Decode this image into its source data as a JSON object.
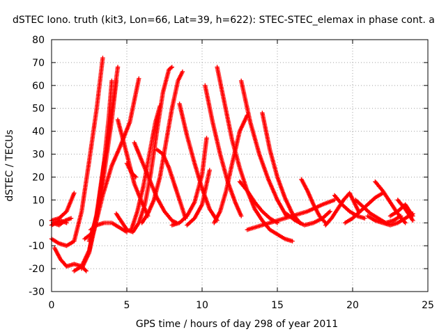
{
  "chart_data": {
    "type": "scatter",
    "title": "dSTEC Iono. truth (kit3, Lon=66, Lat=39, h=622): STEC-STEC_elemax in phase cont. a",
    "xlabel": "GPS time / hours of day 298 of year 2011",
    "ylabel": "dSTEC  / TECUs",
    "xlim": [
      0,
      25
    ],
    "ylim": [
      -30,
      80
    ],
    "xticks": [
      0,
      5,
      10,
      15,
      20,
      25
    ],
    "yticks": [
      -30,
      -20,
      -10,
      0,
      10,
      20,
      30,
      40,
      50,
      60,
      70,
      80
    ],
    "grid": true,
    "marker": "+",
    "color": "#ff0000",
    "series": [
      {
        "x": [
          0,
          0.5,
          1.0,
          1.5
        ],
        "y": [
          1,
          2,
          5,
          13
        ]
      },
      {
        "x": [
          0,
          0.3,
          0.6,
          1.0
        ],
        "y": [
          -1,
          0,
          1,
          0
        ]
      },
      {
        "x": [
          0.1,
          0.5,
          0.9,
          1.3
        ],
        "y": [
          0,
          -1,
          1,
          2
        ]
      },
      {
        "x": [
          0,
          0.5,
          1.0,
          1.5,
          2.0,
          2.5,
          3.0,
          3.4
        ],
        "y": [
          -7,
          -9,
          -10,
          -8,
          5,
          27,
          50,
          72
        ]
      },
      {
        "x": [
          0.2,
          0.6,
          1.0,
          1.5,
          2.0,
          2.3
        ],
        "y": [
          -11,
          -16,
          -19,
          -18,
          -19,
          -21
        ]
      },
      {
        "x": [
          1.5,
          2.0,
          2.5,
          3.0,
          3.5,
          3.8,
          4.0
        ],
        "y": [
          -21,
          -19,
          -12,
          4,
          27,
          46,
          62
        ]
      },
      {
        "x": [
          2.0,
          2.5,
          3.0,
          3.5,
          4.0,
          4.4
        ],
        "y": [
          -20,
          -13,
          2,
          26,
          48,
          68
        ]
      },
      {
        "x": [
          2.5,
          3.0,
          3.5,
          4.0,
          4.3
        ],
        "y": [
          -8,
          3,
          22,
          45,
          62
        ]
      },
      {
        "x": [
          2.2,
          2.8,
          3.4,
          4.0,
          4.6,
          5.2,
          5.8
        ],
        "y": [
          -7,
          -4,
          12,
          25,
          34,
          44,
          63
        ]
      },
      {
        "x": [
          2.6,
          3.0,
          3.5,
          4.0,
          4.5,
          5.0
        ],
        "y": [
          -3,
          -1,
          0,
          0,
          -2,
          -4
        ]
      },
      {
        "x": [
          4.3,
          4.7,
          5.0,
          5.4,
          5.8,
          6.2,
          6.6,
          7.0,
          7.4,
          7.8,
          8.0
        ],
        "y": [
          4,
          0,
          -3,
          -4,
          0,
          8,
          22,
          40,
          57,
          67,
          68
        ]
      },
      {
        "x": [
          4.4,
          5.0,
          5.5,
          6.0,
          6.4
        ],
        "y": [
          45,
          30,
          17,
          9,
          3
        ]
      },
      {
        "x": [
          5.3,
          5.7,
          6.1,
          6.5,
          6.9,
          7.2
        ],
        "y": [
          -3,
          5,
          16,
          30,
          44,
          51
        ]
      },
      {
        "x": [
          5.0,
          5.3,
          5.6
        ],
        "y": [
          26,
          22,
          20
        ]
      },
      {
        "x": [
          5.5,
          6.0,
          6.5,
          7.0,
          7.5,
          8.0,
          8.3
        ],
        "y": [
          35,
          27,
          19,
          11,
          5,
          1,
          0
        ]
      },
      {
        "x": [
          7.0,
          7.4,
          7.8,
          8.2,
          8.6,
          8.9
        ],
        "y": [
          32,
          30,
          24,
          16,
          8,
          2
        ]
      },
      {
        "x": [
          6.0,
          6.4,
          6.8,
          7.2,
          7.6,
          8.0,
          8.4,
          8.7
        ],
        "y": [
          0,
          4,
          10,
          20,
          35,
          50,
          62,
          66
        ]
      },
      {
        "x": [
          8.0,
          8.5,
          9.0,
          9.5,
          10.0,
          10.3
        ],
        "y": [
          -1,
          0,
          3,
          9,
          21,
          37
        ]
      },
      {
        "x": [
          8.5,
          9.0,
          9.5,
          10.0,
          10.5,
          11.0
        ],
        "y": [
          52,
          38,
          26,
          15,
          6,
          1
        ]
      },
      {
        "x": [
          9.0,
          9.5,
          10.0,
          10.5
        ],
        "y": [
          -1,
          2,
          8,
          23
        ]
      },
      {
        "x": [
          10.2,
          10.7,
          11.2,
          11.7,
          12.2,
          12.6
        ],
        "y": [
          60,
          44,
          30,
          18,
          9,
          3
        ]
      },
      {
        "x": [
          10.8,
          11.2,
          11.6,
          12.0,
          12.5,
          13.0
        ],
        "y": [
          0,
          5,
          14,
          26,
          40,
          47
        ]
      },
      {
        "x": [
          11.0,
          11.5,
          12.0,
          12.5,
          13.0,
          13.5,
          14.0,
          14.5,
          15.0,
          15.5,
          16.0
        ],
        "y": [
          68,
          52,
          36,
          24,
          14,
          6,
          1,
          -3,
          -5,
          -7,
          -8
        ]
      },
      {
        "x": [
          12.6,
          13.2,
          13.8,
          14.4,
          15.0,
          15.6
        ],
        "y": [
          62,
          44,
          30,
          19,
          10,
          3
        ]
      },
      {
        "x": [
          12.5,
          13.0,
          13.5,
          14.0,
          14.5,
          15.0
        ],
        "y": [
          18,
          14,
          9,
          5,
          2,
          0
        ]
      },
      {
        "x": [
          13.0,
          14.0,
          15.0,
          16.0,
          17.0,
          18.0,
          18.8
        ],
        "y": [
          -3,
          -1,
          1,
          3,
          5,
          8,
          10
        ]
      },
      {
        "x": [
          14.0,
          14.5,
          15.0,
          15.5,
          16.0,
          16.5
        ],
        "y": [
          48,
          32,
          20,
          11,
          4,
          0
        ]
      },
      {
        "x": [
          16.6,
          17.0,
          17.4,
          17.8,
          18.2
        ],
        "y": [
          19,
          14,
          8,
          3,
          0
        ]
      },
      {
        "x": [
          15.6,
          16.2,
          16.8,
          17.4,
          18.0,
          18.5
        ],
        "y": [
          4,
          1,
          -1,
          0,
          2,
          5
        ]
      },
      {
        "x": [
          18.2,
          18.6,
          19.0,
          19.4,
          19.8,
          20.4
        ],
        "y": [
          -1,
          2,
          6,
          10,
          13,
          5
        ]
      },
      {
        "x": [
          18.8,
          19.3,
          19.8,
          20.3,
          20.8
        ],
        "y": [
          12,
          8,
          5,
          3,
          2
        ]
      },
      {
        "x": [
          19.5,
          20.0,
          20.5,
          21.0,
          21.5,
          22.0
        ],
        "y": [
          0,
          2,
          5,
          8,
          11,
          13
        ]
      },
      {
        "x": [
          20.2,
          20.7,
          21.2,
          21.7,
          22.2,
          22.7,
          23.2
        ],
        "y": [
          10,
          7,
          4,
          2,
          0,
          1,
          3
        ]
      },
      {
        "x": [
          21.5,
          22.0,
          22.5,
          23.0,
          23.5
        ],
        "y": [
          18,
          14,
          9,
          4,
          0
        ]
      },
      {
        "x": [
          21.0,
          21.5,
          22.0,
          22.5,
          23.0,
          23.5,
          24.0
        ],
        "y": [
          3,
          1,
          0,
          -1,
          0,
          2,
          4
        ]
      },
      {
        "x": [
          22.5,
          23.0,
          23.5,
          24.0
        ],
        "y": [
          3,
          5,
          8,
          3
        ]
      },
      {
        "x": [
          23.0,
          23.5,
          24.0
        ],
        "y": [
          10,
          6,
          1
        ]
      }
    ]
  }
}
